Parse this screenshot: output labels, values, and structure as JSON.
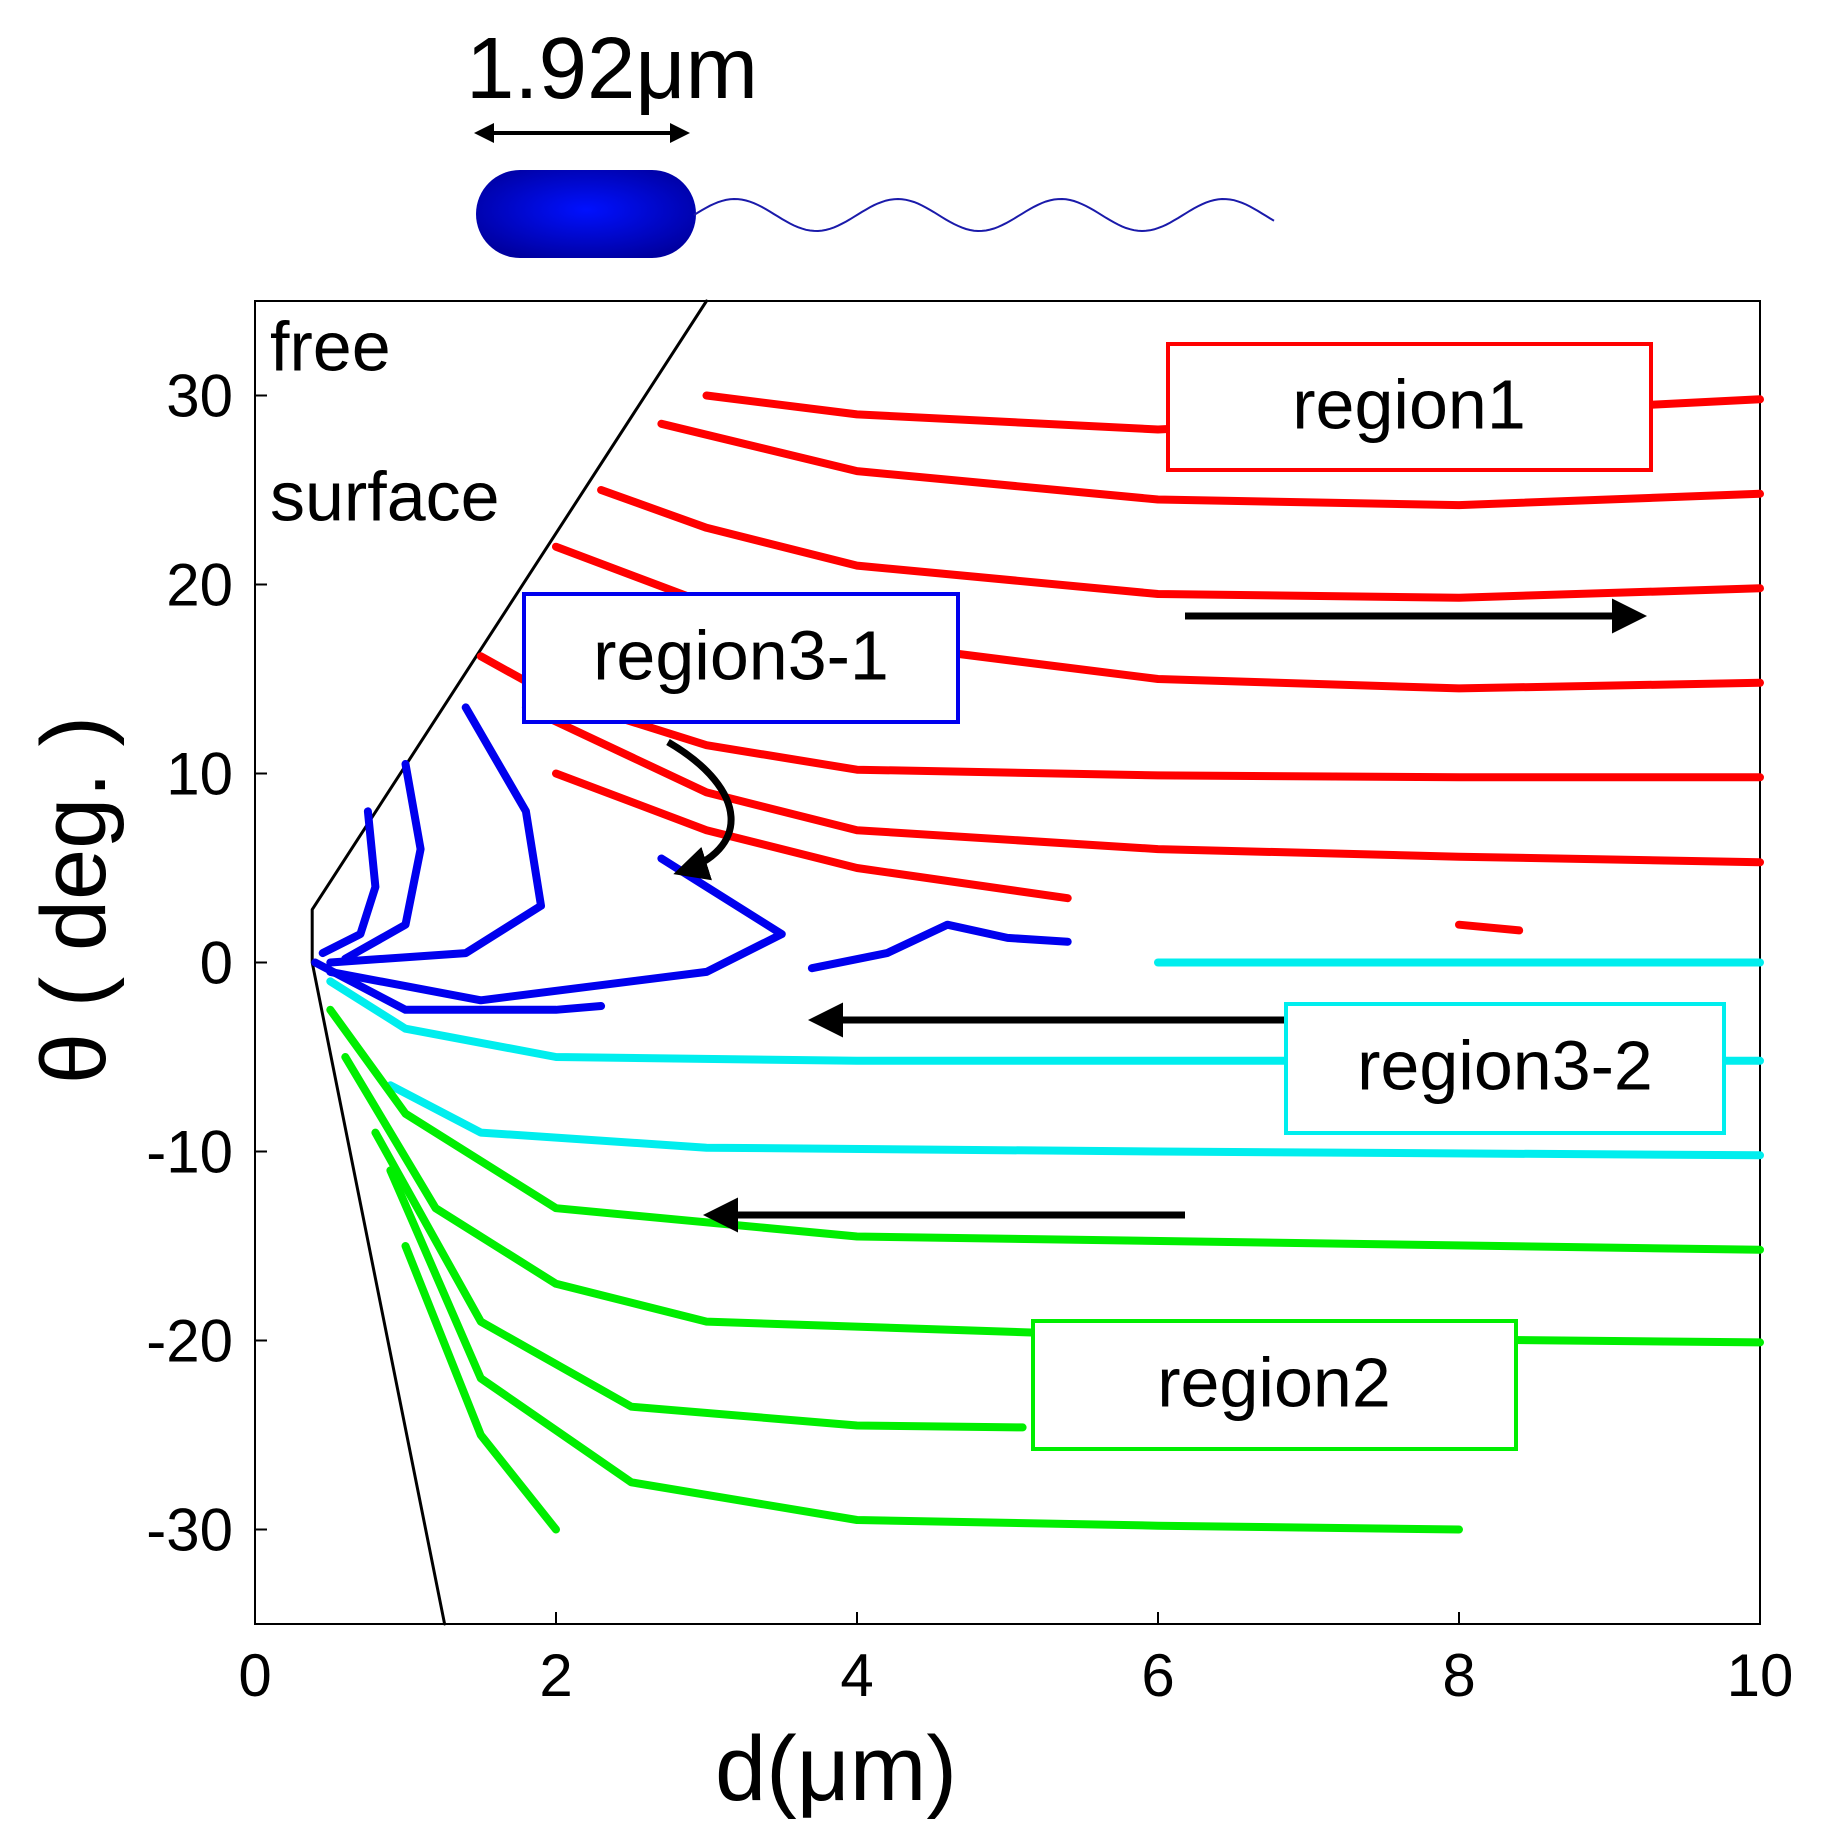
{
  "chart_data": {
    "type": "line",
    "scale_label": "1.92μm",
    "xlabel": "d(μm)",
    "ylabel": "θ ( deg. )",
    "xlim": [
      0,
      10
    ],
    "ylim": [
      -35,
      35
    ],
    "xticks": [
      0,
      2,
      4,
      6,
      8,
      10
    ],
    "yticks": [
      -30,
      -20,
      -10,
      0,
      10,
      20,
      30
    ],
    "annotations": [
      "free",
      "surface",
      "region1",
      "region3-1",
      "region3-2",
      "region2"
    ],
    "series": [
      {
        "color": "#000000",
        "x": [
          3.0,
          0.38,
          0.38,
          1.26
        ],
        "values": [
          35,
          2.8,
          0,
          -35
        ]
      },
      {
        "color": "#ff0000",
        "x": [
          3,
          4,
          6,
          8,
          10
        ],
        "values": [
          30,
          29,
          28.2,
          29,
          29.8
        ]
      },
      {
        "color": "#ff0000",
        "x": [
          2.7,
          4,
          6,
          8,
          10
        ],
        "values": [
          28.5,
          26,
          24.5,
          24.2,
          24.8
        ]
      },
      {
        "color": "#ff0000",
        "x": [
          2.3,
          3,
          4,
          6,
          8,
          10
        ],
        "values": [
          25,
          23,
          21,
          19.5,
          19.3,
          19.8
        ]
      },
      {
        "color": "#ff0000",
        "x": [
          2,
          3,
          4,
          6,
          8,
          10
        ],
        "values": [
          22,
          19,
          17,
          15,
          14.5,
          14.8
        ]
      },
      {
        "color": "#ff0000",
        "x": [
          1.5,
          2,
          3,
          4,
          6,
          8,
          10
        ],
        "values": [
          16.2,
          14,
          11.5,
          10.2,
          9.9,
          9.8,
          9.8
        ]
      },
      {
        "color": "#ff0000",
        "x": [
          1.8,
          3,
          4,
          6,
          8,
          10
        ],
        "values": [
          13.5,
          9,
          7,
          6,
          5.6,
          5.3
        ]
      },
      {
        "color": "#ff0000",
        "x": [
          2,
          3,
          4,
          5.4
        ],
        "values": [
          10,
          7,
          5,
          3.4
        ]
      },
      {
        "color": "#ff0000",
        "x": [
          8,
          8.4
        ],
        "values": [
          2,
          1.7
        ]
      },
      {
        "color": "#0000ee",
        "x": [
          0.75,
          0.8,
          0.7,
          0.45
        ],
        "values": [
          8,
          4,
          1.5,
          0.5
        ]
      },
      {
        "color": "#0000ee",
        "x": [
          1.0,
          1.1,
          1.0,
          0.6
        ],
        "values": [
          10.5,
          6,
          2,
          0.2
        ]
      },
      {
        "color": "#0000ee",
        "x": [
          1.4,
          1.8,
          1.9,
          1.4,
          0.5
        ],
        "values": [
          13.5,
          8,
          3,
          0.5,
          0
        ]
      },
      {
        "color": "#0000ee",
        "x": [
          2.7,
          3.5,
          3.0,
          1.5,
          0.5
        ],
        "values": [
          5.5,
          1.5,
          -0.5,
          -2,
          -0.5
        ]
      },
      {
        "color": "#0000ee",
        "x": [
          3.7,
          4.2,
          4.6,
          5.0,
          5.4
        ],
        "values": [
          -0.3,
          0.5,
          2,
          1.3,
          1.1
        ]
      },
      {
        "color": "#0000ee",
        "x": [
          0.4,
          1,
          2,
          2.3
        ],
        "values": [
          0,
          -2.5,
          -2.5,
          -2.3
        ]
      },
      {
        "color": "#00eeee",
        "x": [
          6,
          10
        ],
        "values": [
          0,
          0
        ]
      },
      {
        "color": "#00eeee",
        "x": [
          0.5,
          1,
          2,
          4,
          10
        ],
        "values": [
          -1,
          -3.5,
          -5,
          -5.2,
          -5.2
        ]
      },
      {
        "color": "#00eeee",
        "x": [
          0.9,
          1.5,
          3,
          6,
          10
        ],
        "values": [
          -6.5,
          -9,
          -9.8,
          -10,
          -10.2
        ]
      },
      {
        "color": "#00ee00",
        "x": [
          0.5,
          1,
          2,
          4,
          10
        ],
        "values": [
          -2.5,
          -8,
          -13,
          -14.5,
          -15.2
        ]
      },
      {
        "color": "#00ee00",
        "x": [
          0.6,
          1.2,
          2,
          3,
          6,
          10
        ],
        "values": [
          -5,
          -13,
          -17,
          -19,
          -19.8,
          -20.1
        ]
      },
      {
        "color": "#00ee00",
        "x": [
          0.8,
          1.5,
          2.5,
          4,
          5.1
        ],
        "values": [
          -9,
          -19,
          -23.5,
          -24.5,
          -24.6
        ]
      },
      {
        "color": "#00ee00",
        "x": [
          0.9,
          1.5,
          2.5,
          4,
          6,
          8
        ],
        "values": [
          -11,
          -22,
          -27.5,
          -29.5,
          -29.8,
          -30
        ]
      },
      {
        "color": "#00ee00",
        "x": [
          1,
          1.5,
          2
        ],
        "values": [
          -15,
          -25,
          -30
        ]
      }
    ]
  }
}
